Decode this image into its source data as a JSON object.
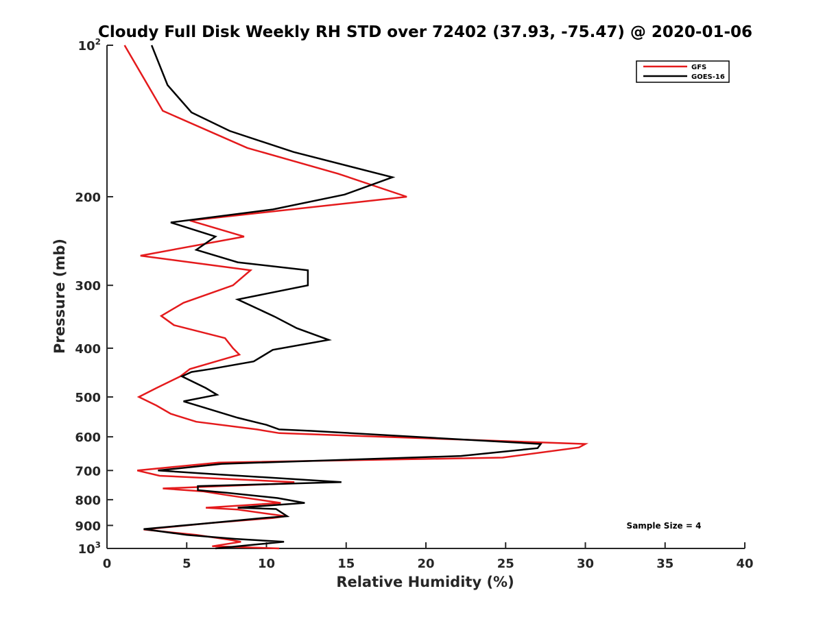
{
  "chart_data": {
    "type": "line",
    "title": "Cloudy Full Disk Weekly RH STD over 72402 (37.93, -75.47) @ 2020-01-06",
    "xlabel": "Relative Humidity (%)",
    "ylabel": "Pressure (mb)",
    "xlim": [
      0,
      40
    ],
    "ylim": [
      100,
      1000
    ],
    "y_scale": "log",
    "y_reversed": true,
    "x_ticks": [
      0,
      5,
      10,
      15,
      20,
      25,
      30,
      35,
      40
    ],
    "x_tick_labels": [
      "0",
      "5",
      "10",
      "15",
      "20",
      "25",
      "30",
      "35",
      "40"
    ],
    "y_ticks": [
      100,
      200,
      300,
      400,
      500,
      600,
      700,
      800,
      900,
      1000
    ],
    "y_tick_labels": [
      {
        "base": "10",
        "sup": "2"
      },
      {
        "base": "200",
        "sup": ""
      },
      {
        "base": "300",
        "sup": ""
      },
      {
        "base": "400",
        "sup": ""
      },
      {
        "base": "500",
        "sup": ""
      },
      {
        "base": "600",
        "sup": ""
      },
      {
        "base": "700",
        "sup": ""
      },
      {
        "base": "800",
        "sup": ""
      },
      {
        "base": "900",
        "sup": ""
      },
      {
        "base": "10",
        "sup": "3"
      }
    ],
    "grid": false,
    "legend_position": "top-right",
    "annotation": "Sample Size = 4",
    "series": [
      {
        "name": "GFS",
        "color": "#e41a1c",
        "points": [
          [
            1.1,
            100
          ],
          [
            3.5,
            135
          ],
          [
            8.8,
            160
          ],
          [
            14.5,
            180
          ],
          [
            18.8,
            200
          ],
          [
            5.2,
            223
          ],
          [
            8.6,
            240
          ],
          [
            2.1,
            262
          ],
          [
            9.0,
            280
          ],
          [
            7.9,
            300
          ],
          [
            4.8,
            325
          ],
          [
            3.4,
            345
          ],
          [
            4.2,
            360
          ],
          [
            7.4,
            382
          ],
          [
            7.9,
            400
          ],
          [
            8.3,
            412
          ],
          [
            5.2,
            440
          ],
          [
            4.6,
            455
          ],
          [
            3.1,
            480
          ],
          [
            2.0,
            500
          ],
          [
            3.1,
            520
          ],
          [
            4.0,
            540
          ],
          [
            5.6,
            560
          ],
          [
            9.4,
            580
          ],
          [
            10.8,
            590
          ],
          [
            30.0,
            620
          ],
          [
            29.6,
            630
          ],
          [
            24.8,
            660
          ],
          [
            7.0,
            675
          ],
          [
            1.9,
            700
          ],
          [
            3.3,
            717
          ],
          [
            11.7,
            738
          ],
          [
            11.7,
            742
          ],
          [
            3.5,
            760
          ],
          [
            6.0,
            770
          ],
          [
            7.8,
            786
          ],
          [
            10.9,
            812
          ],
          [
            6.2,
            830
          ],
          [
            8.2,
            837
          ],
          [
            11.2,
            863
          ],
          [
            10.4,
            870
          ],
          [
            6.5,
            890
          ],
          [
            2.3,
            917
          ],
          [
            5.6,
            940
          ],
          [
            7.6,
            960
          ],
          [
            8.4,
            970
          ],
          [
            6.6,
            990
          ],
          [
            10.8,
            1000
          ]
        ]
      },
      {
        "name": "GOES-16",
        "color": "#000000",
        "points": [
          [
            2.8,
            100
          ],
          [
            3.8,
            120
          ],
          [
            5.3,
            136
          ],
          [
            7.7,
            148
          ],
          [
            11.7,
            163
          ],
          [
            17.9,
            183
          ],
          [
            14.9,
            198
          ],
          [
            10.4,
            212
          ],
          [
            4.0,
            225
          ],
          [
            6.8,
            240
          ],
          [
            5.6,
            255
          ],
          [
            8.2,
            270
          ],
          [
            12.6,
            280
          ],
          [
            12.6,
            300
          ],
          [
            8.2,
            320
          ],
          [
            10.5,
            346
          ],
          [
            11.9,
            365
          ],
          [
            13.9,
            385
          ],
          [
            10.4,
            403
          ],
          [
            9.2,
            425
          ],
          [
            6.5,
            440
          ],
          [
            5.3,
            446
          ],
          [
            4.7,
            455
          ],
          [
            6.2,
            480
          ],
          [
            6.9,
            495
          ],
          [
            4.8,
            510
          ],
          [
            6.1,
            525
          ],
          [
            8.2,
            550
          ],
          [
            10.0,
            568
          ],
          [
            10.8,
            580
          ],
          [
            12.8,
            584
          ],
          [
            27.2,
            620
          ],
          [
            27.0,
            632
          ],
          [
            22.2,
            655
          ],
          [
            7.2,
            679
          ],
          [
            3.2,
            700
          ],
          [
            7.1,
            713
          ],
          [
            14.7,
            738
          ],
          [
            10.2,
            745
          ],
          [
            5.7,
            752
          ],
          [
            5.7,
            766
          ],
          [
            7.5,
            775
          ],
          [
            10.7,
            794
          ],
          [
            12.4,
            812
          ],
          [
            8.2,
            830
          ],
          [
            10.6,
            835
          ],
          [
            11.3,
            863
          ],
          [
            10.0,
            869
          ],
          [
            6.5,
            890
          ],
          [
            2.3,
            915
          ],
          [
            5.0,
            940
          ],
          [
            8.0,
            957
          ],
          [
            11.1,
            970
          ],
          [
            6.8,
            1000
          ]
        ]
      }
    ]
  }
}
